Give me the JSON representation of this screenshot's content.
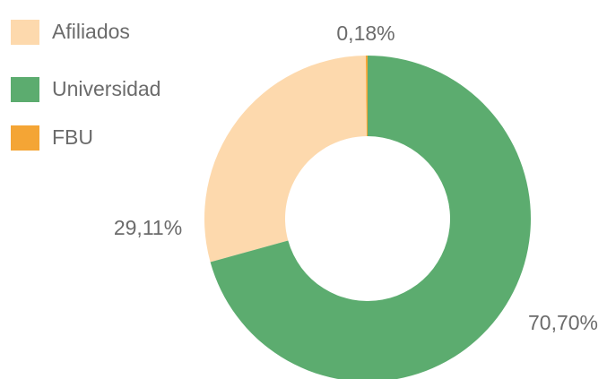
{
  "chart_data": {
    "type": "donut",
    "categories": [
      "Afiliados",
      "Universidad",
      "FBU"
    ],
    "values": [
      29.11,
      70.7,
      0.18
    ],
    "value_labels": [
      "29,11%",
      "70,70%",
      "0,18%"
    ],
    "colors": [
      "#fdd9ad",
      "#5cac6f",
      "#f4a535"
    ],
    "legend": "top-left"
  }
}
